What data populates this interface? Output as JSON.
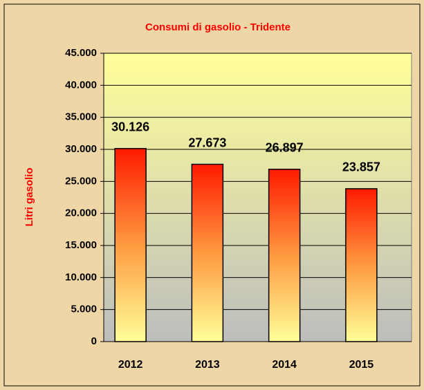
{
  "chart_data": {
    "type": "bar",
    "title": "Consumi di gasolio - Tridente",
    "y_label": "Litri gasolio",
    "categories": [
      "2012",
      "2013",
      "2014",
      "2015"
    ],
    "values": [
      30126,
      27673,
      26897,
      23857
    ],
    "value_labels": [
      "30.126",
      "27.673",
      "26.897",
      "23.857"
    ],
    "ylim": [
      0,
      45000
    ],
    "yticks": [
      0,
      {
        "value": 5000,
        "label": "5.000"
      },
      {
        "value": 10000,
        "label": "10.000"
      },
      {
        "value": 15000,
        "label": "15.000"
      },
      {
        "value": 20000,
        "label": "20.000"
      },
      {
        "value": 25000,
        "label": "25.000"
      },
      {
        "value": 30000,
        "label": "30.000"
      },
      {
        "value": 35000,
        "label": "35.000"
      },
      {
        "value": 40000,
        "label": "40.000"
      },
      {
        "value": 45000,
        "label": "45.000"
      }
    ],
    "grid": true
  }
}
